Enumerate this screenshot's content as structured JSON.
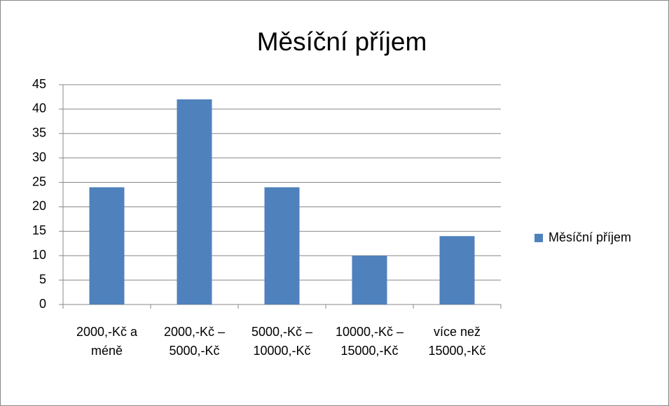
{
  "chart_data": {
    "type": "bar",
    "title": "Měsíční příjem",
    "categories": [
      "2000,-Kč a méně",
      "2000,-Kč – 5000,-Kč",
      "5000,-Kč – 10000,-Kč",
      "10000,-Kč – 15000,-Kč",
      "více než 15000,-Kč"
    ],
    "series": [
      {
        "name": "Měsíční příjem",
        "color": "#4f81bd",
        "values": [
          24,
          42,
          24,
          10,
          14
        ]
      }
    ],
    "ylim": [
      0,
      45
    ],
    "yticks": [
      0,
      5,
      10,
      15,
      20,
      25,
      30,
      35,
      40,
      45
    ],
    "grid": true,
    "legend": "right"
  }
}
